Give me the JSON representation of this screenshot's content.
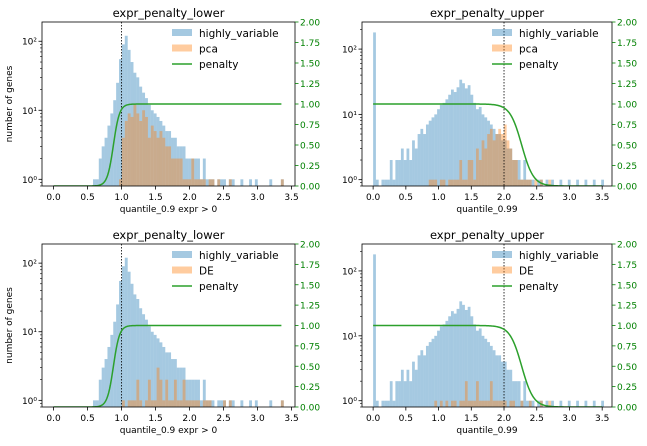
{
  "chart_data": [
    {
      "type": "histogram",
      "title": "expr_penalty_lower",
      "xlabel": "quantile_0.9 expr > 0",
      "ylabel": "number of genes",
      "y2label": "",
      "xlim": [
        -0.17,
        3.55
      ],
      "ylim": [
        0.8,
        190
      ],
      "y2lim": [
        0,
        2.0
      ],
      "yscale": "log",
      "xticks": [
        "0.0",
        "0.5",
        "1.0",
        "1.5",
        "2.0",
        "2.5",
        "3.0",
        "3.5"
      ],
      "yticks": [
        "10⁰",
        "10¹",
        "10²"
      ],
      "y2ticks": [
        "0.00",
        "0.25",
        "0.50",
        "0.75",
        "1.00",
        "1.25",
        "1.50",
        "1.75",
        "2.00"
      ],
      "vline": 1.0,
      "legend": [
        "highly_variable",
        "pca",
        "penalty"
      ],
      "legend_position": "upper-right",
      "colors": {
        "hist": "#1f77b4",
        "sub": "#ff7f0e",
        "penalty": "#2ca02c",
        "axis2": "#008000"
      },
      "penalty": {
        "center": 0.88,
        "width": 0.045,
        "amplitude": 1.0,
        "rise_side": "left",
        "x_start": 0.0,
        "x_end": 3.35
      },
      "series": [
        {
          "name": "highly_variable",
          "bin_start": 0.58,
          "bin_width": 0.0425,
          "counts": [
            1,
            1,
            2,
            3,
            4,
            6,
            9,
            14,
            25,
            55,
            90,
            120,
            75,
            50,
            35,
            30,
            22,
            18,
            15,
            12,
            10,
            9,
            8,
            7,
            6,
            5,
            5,
            4,
            4,
            3,
            3,
            3,
            2,
            2,
            2,
            2,
            2,
            1,
            2,
            1,
            1,
            1,
            0,
            1,
            1,
            1,
            0,
            1,
            1,
            0,
            0,
            1,
            0,
            0,
            1,
            0,
            1,
            0,
            0,
            0,
            0,
            1,
            0,
            0,
            0,
            1,
            0
          ]
        },
        {
          "name": "pca",
          "bin_start": 0.58,
          "bin_width": 0.0425,
          "counts": [
            0,
            0,
            0,
            0,
            0,
            0,
            0,
            0,
            0,
            1,
            4,
            7,
            9,
            8,
            12,
            9,
            7,
            10,
            8,
            4,
            6,
            5,
            4,
            5,
            4,
            3,
            3,
            2,
            2,
            2,
            2,
            1,
            1,
            1,
            2,
            1,
            1,
            1,
            1,
            0,
            1,
            1,
            0,
            1,
            0,
            0,
            0,
            1,
            0,
            0,
            0,
            0,
            0,
            0,
            0,
            0,
            0,
            0,
            0,
            0,
            0,
            0,
            0,
            0,
            0,
            1,
            0
          ]
        }
      ]
    },
    {
      "type": "histogram",
      "title": "expr_penalty_upper",
      "xlabel": "quantile_0.99",
      "ylabel": "",
      "y2label": "",
      "xlim": [
        -0.17,
        3.65
      ],
      "ylim": [
        0.8,
        260
      ],
      "y2lim": [
        0,
        2.0
      ],
      "yscale": "log",
      "xticks": [
        "0.0",
        "0.5",
        "1.0",
        "1.5",
        "2.0",
        "2.5",
        "3.0",
        "3.5"
      ],
      "yticks": [
        "10⁰",
        "10¹",
        "10²"
      ],
      "y2ticks": [
        "0.00",
        "0.25",
        "0.50",
        "0.75",
        "1.00",
        "1.25",
        "1.50",
        "1.75",
        "2.00"
      ],
      "vline": 2.0,
      "legend": [
        "highly_variable",
        "pca",
        "penalty"
      ],
      "legend_position": "upper-right",
      "colors": {
        "hist": "#1f77b4",
        "sub": "#ff7f0e",
        "penalty": "#2ca02c",
        "axis2": "#008000"
      },
      "penalty": {
        "center": 2.27,
        "width": 0.09,
        "amplitude": 1.0,
        "rise_side": "right",
        "x_start": 0.0,
        "x_end": 3.5
      },
      "series": [
        {
          "name": "highly_variable",
          "bin_start": 0.0,
          "bin_width": 0.0425,
          "counts": [
            180,
            1,
            0,
            1,
            1,
            1,
            2,
            1,
            2,
            2,
            3,
            2,
            3,
            2,
            4,
            3,
            5,
            6,
            5,
            7,
            8,
            9,
            10,
            12,
            14,
            15,
            17,
            20,
            24,
            22,
            26,
            34,
            30,
            25,
            28,
            20,
            15,
            12,
            13,
            10,
            9,
            8,
            7,
            6,
            5,
            5,
            4,
            4,
            3,
            3,
            2,
            2,
            2,
            1,
            2,
            1,
            1,
            1,
            0,
            1,
            1,
            0,
            1,
            0,
            1,
            0,
            0,
            1,
            0,
            0,
            1,
            0,
            0,
            1,
            0,
            0,
            1,
            0,
            0,
            1,
            0,
            0,
            1
          ]
        },
        {
          "name": "pca",
          "bin_start": 0.0,
          "bin_width": 0.0425,
          "counts": [
            0,
            0,
            0,
            0,
            0,
            0,
            0,
            0,
            0,
            0,
            0,
            0,
            0,
            0,
            0,
            0,
            0,
            0,
            0,
            0,
            1,
            1,
            1,
            0,
            1,
            1,
            0,
            1,
            1,
            1,
            1,
            2,
            1,
            1,
            2,
            2,
            1,
            3,
            2,
            4,
            3,
            5,
            6,
            4,
            5,
            6,
            5,
            7,
            4,
            3,
            2,
            2,
            1,
            1,
            1,
            1,
            1,
            0,
            1,
            0,
            1,
            0,
            0,
            1,
            0,
            0,
            0,
            0,
            0,
            0,
            0,
            0,
            0,
            0,
            0,
            0,
            0,
            0,
            0,
            0,
            0,
            0,
            0
          ]
        }
      ]
    },
    {
      "type": "histogram",
      "title": "expr_penalty_lower",
      "xlabel": "quantile_0.9 expr > 0",
      "ylabel": "number of genes",
      "y2label": "",
      "xlim": [
        -0.17,
        3.55
      ],
      "ylim": [
        0.8,
        190
      ],
      "y2lim": [
        0,
        2.0
      ],
      "yscale": "log",
      "xticks": [
        "0.0",
        "0.5",
        "1.0",
        "1.5",
        "2.0",
        "2.5",
        "3.0",
        "3.5"
      ],
      "yticks": [
        "10⁰",
        "10¹",
        "10²"
      ],
      "y2ticks": [
        "0.00",
        "0.25",
        "0.50",
        "0.75",
        "1.00",
        "1.25",
        "1.50",
        "1.75",
        "2.00"
      ],
      "vline": 1.0,
      "legend": [
        "highly_variable",
        "DE",
        "penalty"
      ],
      "legend_position": "upper-right",
      "colors": {
        "hist": "#1f77b4",
        "sub": "#ff7f0e",
        "penalty": "#2ca02c",
        "axis2": "#008000"
      },
      "penalty": {
        "center": 0.88,
        "width": 0.045,
        "amplitude": 1.0,
        "rise_side": "left",
        "x_start": 0.0,
        "x_end": 3.35
      },
      "series": [
        {
          "name": "highly_variable",
          "bin_start": 0.58,
          "bin_width": 0.0425,
          "counts": [
            1,
            1,
            2,
            3,
            4,
            6,
            9,
            14,
            25,
            55,
            90,
            120,
            75,
            50,
            35,
            30,
            22,
            18,
            15,
            12,
            10,
            9,
            8,
            7,
            6,
            5,
            5,
            4,
            4,
            3,
            3,
            3,
            2,
            2,
            2,
            2,
            2,
            1,
            2,
            1,
            1,
            1,
            0,
            1,
            1,
            1,
            0,
            1,
            1,
            0,
            0,
            1,
            0,
            0,
            1,
            0,
            1,
            0,
            0,
            0,
            0,
            1,
            0,
            0,
            0,
            1,
            0
          ]
        },
        {
          "name": "DE",
          "bin_start": 0.58,
          "bin_width": 0.0425,
          "counts": [
            0,
            0,
            0,
            0,
            0,
            0,
            0,
            0,
            0,
            0,
            1,
            0,
            1,
            1,
            1,
            2,
            1,
            0,
            1,
            2,
            1,
            1,
            3,
            2,
            1,
            2,
            1,
            1,
            2,
            1,
            1,
            2,
            1,
            1,
            1,
            1,
            1,
            0,
            1,
            1,
            1,
            0,
            0,
            0,
            0,
            1,
            0,
            1,
            0,
            0,
            0,
            0,
            0,
            0,
            0,
            0,
            0,
            0,
            0,
            0,
            0,
            0,
            0,
            0,
            0,
            1,
            0
          ]
        }
      ]
    },
    {
      "type": "histogram",
      "title": "expr_penalty_upper",
      "xlabel": "quantile_0.99",
      "ylabel": "",
      "y2label": "",
      "xlim": [
        -0.17,
        3.65
      ],
      "ylim": [
        0.8,
        260
      ],
      "y2lim": [
        0,
        2.0
      ],
      "yscale": "log",
      "xticks": [
        "0.0",
        "0.5",
        "1.0",
        "1.5",
        "2.0",
        "2.5",
        "3.0",
        "3.5"
      ],
      "yticks": [
        "10⁰",
        "10¹",
        "10²"
      ],
      "y2ticks": [
        "0.00",
        "0.25",
        "0.50",
        "0.75",
        "1.00",
        "1.25",
        "1.50",
        "1.75",
        "2.00"
      ],
      "vline": 2.0,
      "legend": [
        "highly_variable",
        "DE",
        "penalty"
      ],
      "legend_position": "upper-right",
      "colors": {
        "hist": "#1f77b4",
        "sub": "#ff7f0e",
        "penalty": "#2ca02c",
        "axis2": "#008000"
      },
      "penalty": {
        "center": 2.27,
        "width": 0.09,
        "amplitude": 1.0,
        "rise_side": "right",
        "x_start": 0.0,
        "x_end": 3.5
      },
      "series": [
        {
          "name": "highly_variable",
          "bin_start": 0.0,
          "bin_width": 0.0425,
          "counts": [
            180,
            1,
            0,
            1,
            1,
            1,
            2,
            1,
            2,
            2,
            3,
            2,
            3,
            2,
            4,
            3,
            5,
            6,
            5,
            7,
            8,
            9,
            10,
            12,
            14,
            15,
            17,
            20,
            24,
            22,
            26,
            34,
            30,
            25,
            28,
            20,
            15,
            12,
            13,
            10,
            9,
            8,
            7,
            6,
            5,
            5,
            4,
            4,
            3,
            3,
            2,
            2,
            2,
            1,
            2,
            1,
            1,
            1,
            0,
            1,
            1,
            0,
            1,
            0,
            1,
            0,
            0,
            1,
            0,
            0,
            1,
            0,
            0,
            1,
            0,
            0,
            1,
            0,
            0,
            1,
            0,
            0,
            1
          ]
        },
        {
          "name": "DE",
          "bin_start": 0.0,
          "bin_width": 0.0425,
          "counts": [
            0,
            0,
            0,
            0,
            0,
            0,
            0,
            0,
            0,
            0,
            0,
            0,
            0,
            0,
            0,
            0,
            0,
            0,
            0,
            0,
            0,
            0,
            1,
            0,
            1,
            0,
            1,
            0,
            1,
            1,
            0,
            1,
            1,
            2,
            1,
            1,
            1,
            2,
            1,
            1,
            1,
            1,
            2,
            1,
            1,
            1,
            1,
            1,
            0,
            1,
            1,
            0,
            0,
            1,
            0,
            0,
            1,
            0,
            0,
            0,
            1,
            0,
            0,
            1,
            0,
            0,
            0,
            0,
            0,
            0,
            0,
            0,
            0,
            0,
            0,
            0,
            0,
            0,
            0,
            0,
            0,
            0,
            0
          ]
        }
      ]
    }
  ]
}
